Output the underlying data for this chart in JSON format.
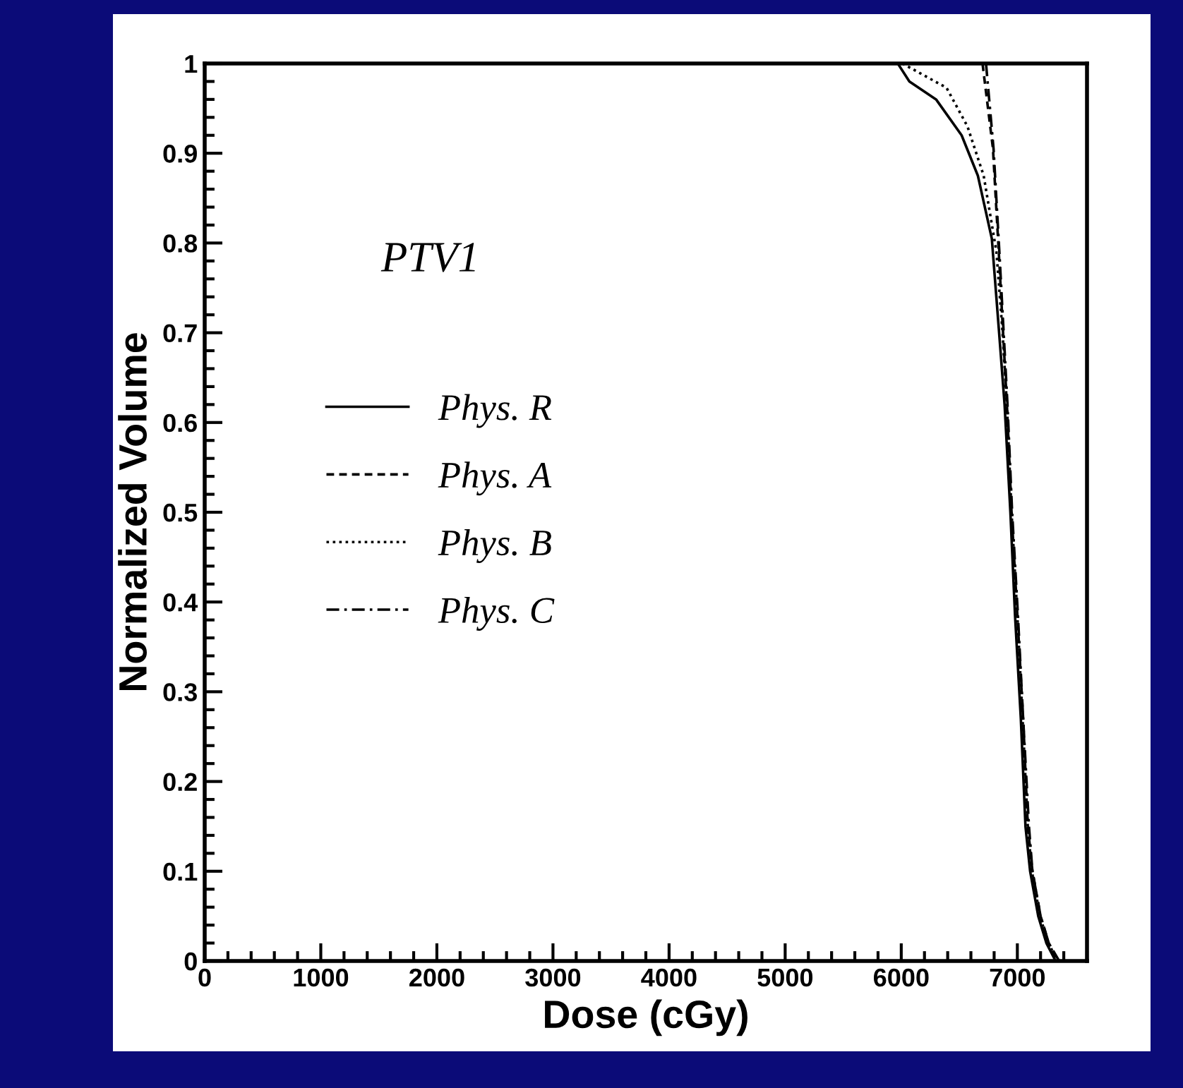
{
  "chart_data": {
    "type": "line",
    "xlabel": "Dose (cGy)",
    "ylabel": "Normalized Volume",
    "annotations": [
      "PTV1"
    ],
    "xlim": [
      0,
      7600
    ],
    "xticks": [
      0,
      1000,
      2000,
      3000,
      4000,
      5000,
      6000,
      7000
    ],
    "ylim": [
      0,
      1
    ],
    "yticks": [
      0,
      0.1,
      0.2,
      0.3,
      0.4,
      0.5,
      0.6,
      0.7,
      0.8,
      0.9,
      1
    ],
    "grid": false,
    "legend": "center left",
    "marker": "none",
    "series": [
      {
        "name": "Phys. R",
        "color": "#000000",
        "line_style": "solid",
        "x": [
          5970,
          6070,
          6300,
          6520,
          6660,
          6780,
          6840,
          6890,
          6940,
          6980,
          7030,
          7070,
          7110,
          7180,
          7250,
          7330
        ],
        "values": [
          1.0,
          0.98,
          0.96,
          0.92,
          0.875,
          0.805,
          0.705,
          0.62,
          0.5,
          0.385,
          0.27,
          0.15,
          0.1,
          0.05,
          0.02,
          0.0
        ]
      },
      {
        "name": "Phys. A",
        "color": "#000000",
        "line_style": "dashed",
        "x": [
          6700,
          6790,
          6840,
          6910,
          6950,
          7000,
          7050,
          7090,
          7130,
          7200,
          7270,
          7340
        ],
        "values": [
          1.0,
          0.905,
          0.79,
          0.62,
          0.5,
          0.385,
          0.27,
          0.15,
          0.1,
          0.05,
          0.02,
          0.0
        ]
      },
      {
        "name": "Phys. B",
        "color": "#000000",
        "line_style": "dotted",
        "x": [
          6010,
          6390,
          6570,
          6710,
          6820,
          6870,
          6910,
          6950,
          7000,
          7045,
          7090,
          7125,
          7195,
          7265,
          7350
        ],
        "values": [
          1.0,
          0.973,
          0.93,
          0.875,
          0.79,
          0.705,
          0.62,
          0.5,
          0.385,
          0.27,
          0.15,
          0.1,
          0.05,
          0.02,
          0.0
        ]
      },
      {
        "name": "Phys. C",
        "color": "#000000",
        "line_style": "dashdot",
        "x": [
          6730,
          6795,
          6845,
          6915,
          6955,
          7005,
          7050,
          7100,
          7130,
          7200,
          7270,
          7360
        ],
        "values": [
          1.0,
          0.905,
          0.79,
          0.62,
          0.5,
          0.385,
          0.27,
          0.15,
          0.1,
          0.05,
          0.02,
          0.0
        ]
      }
    ]
  }
}
